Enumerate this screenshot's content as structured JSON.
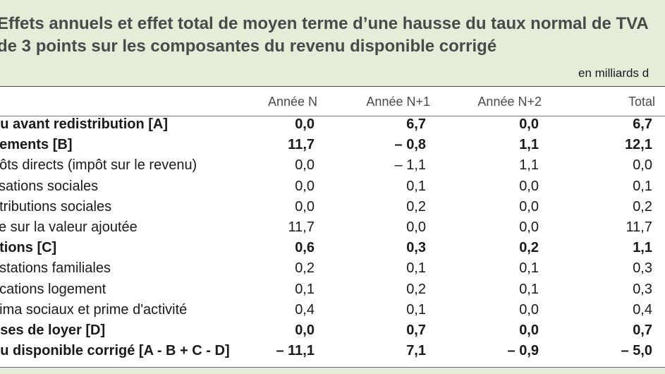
{
  "title": "Effets annuels et effet total de moyen terme d’une hausse du taux normal de TVA de 3 points sur les composantes du revenu disponible corrigé",
  "unit": "en milliards d",
  "columns": [
    "Année N",
    "Année N+1",
    "Année N+2",
    "Total"
  ],
  "rows": [
    {
      "label": "nu avant redistribution [A]",
      "values": [
        "0,0",
        "6,7",
        "0,0",
        "6,7"
      ],
      "bold": true
    },
    {
      "label": "vements [B]",
      "values": [
        "11,7",
        "– 0,8",
        "1,1",
        "12,1"
      ],
      "bold": true
    },
    {
      "label": "pôts directs (impôt sur le revenu)",
      "values": [
        "0,0",
        "– 1,1",
        "1,1",
        "0,0"
      ],
      "bold": false
    },
    {
      "label": "tisations sociales",
      "values": [
        "0,0",
        "0,1",
        "0,0",
        "0,1"
      ],
      "bold": false
    },
    {
      "label": "ntributions sociales",
      "values": [
        "0,0",
        "0,2",
        "0,0",
        "0,2"
      ],
      "bold": false
    },
    {
      "label": "xe sur la valeur ajoutée",
      "values": [
        "11,7",
        "0,0",
        "0,0",
        "11,7"
      ],
      "bold": false
    },
    {
      "label": "ations [C]",
      "values": [
        "0,6",
        "0,3",
        "0,2",
        "1,1"
      ],
      "bold": true
    },
    {
      "label": "estations familiales",
      "values": [
        "0,2",
        "0,1",
        "0,1",
        "0,3"
      ],
      "bold": false
    },
    {
      "label": "ocations logement",
      "values": [
        "0,1",
        "0,2",
        "0,1",
        "0,3"
      ],
      "bold": false
    },
    {
      "label": "nima sociaux et prime d'activité",
      "values": [
        "0,4",
        "0,1",
        "0,0",
        "0,4"
      ],
      "bold": false
    },
    {
      "label": "nses de loyer [D]",
      "values": [
        "0,0",
        "0,7",
        "0,0",
        "0,7"
      ],
      "bold": true
    },
    {
      "label": "nu disponible corrigé [A - B + C - D]",
      "values": [
        "– 11,1",
        "7,1",
        "– 0,9",
        "– 5,0"
      ],
      "bold": true
    }
  ]
}
